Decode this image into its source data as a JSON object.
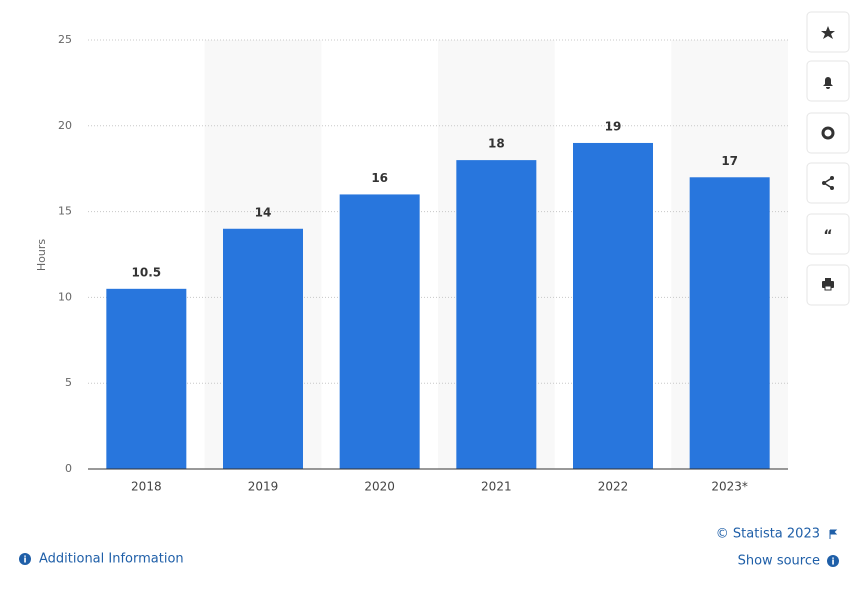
{
  "chart_data": {
    "type": "bar",
    "categories": [
      "2018",
      "2019",
      "2020",
      "2021",
      "2022",
      "2023*"
    ],
    "values": [
      10.5,
      14,
      16,
      18,
      19,
      17
    ],
    "color": "#2876dd",
    "y_label": "Hours",
    "ylim": [
      0,
      25
    ],
    "yticks": [
      0,
      5,
      10,
      15,
      20,
      25
    ],
    "grid": true
  },
  "footer": {
    "copyright": "© Statista 2023",
    "show_source": "Show source",
    "additional_information": "Additional Information"
  }
}
